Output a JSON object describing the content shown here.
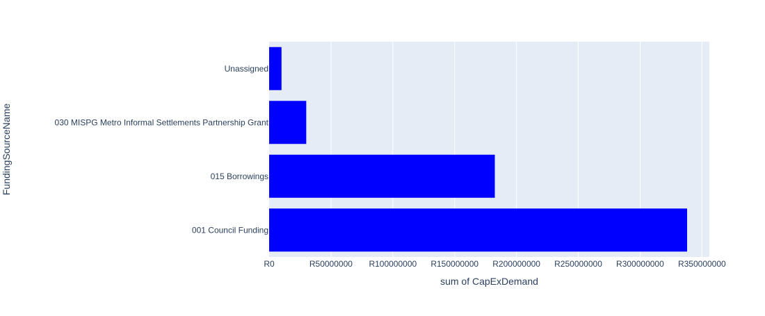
{
  "chart_data": {
    "type": "bar",
    "orientation": "horizontal",
    "categories": [
      "001 Council Funding",
      "015 Borrowings",
      "030 MISPG Metro Informal Settlements Partnership Grant",
      "Unassigned"
    ],
    "values": [
      338000000,
      182500000,
      30000000,
      10000000
    ],
    "xlabel": "sum of CapExDemand",
    "ylabel": "FundingSourceName",
    "xlim": [
      0,
      356000000
    ],
    "x_ticks": [
      0,
      50000000,
      100000000,
      150000000,
      200000000,
      250000000,
      300000000,
      350000000
    ],
    "x_tick_labels": [
      "R0",
      "R50000000",
      "R100000000",
      "R150000000",
      "R200000000",
      "R250000000",
      "R300000000",
      "R350000000"
    ],
    "grid": true,
    "colors": {
      "bar": "#0000ff",
      "plot_background": "#e5ecf6",
      "gridline": "#ffffff",
      "text": "#2a3f5f"
    }
  }
}
